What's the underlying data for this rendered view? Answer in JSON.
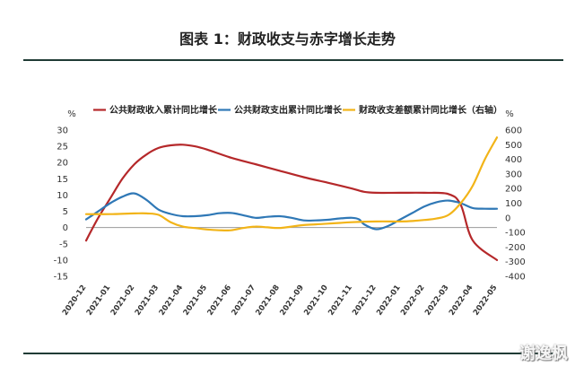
{
  "title": "图表 1：财政收支与赤字增长走势",
  "watermark": "谢逸枫",
  "chart_data": {
    "type": "line",
    "categories": [
      "2020-12",
      "2021-01",
      "2021-02",
      "2021-03",
      "2021-04",
      "2021-05",
      "2021-06",
      "2021-07",
      "2021-08",
      "2021-09",
      "2021-10",
      "2021-11",
      "2021-12",
      "2022-01",
      "2022-02",
      "2022-03",
      "2022-04",
      "2022-05"
    ],
    "left_unit": "%",
    "right_unit": "%",
    "ylim_left": [
      -15,
      30
    ],
    "yticks_left": [
      "30",
      "25",
      "20",
      "15",
      "10",
      "5",
      "0",
      "-5",
      "-10",
      "-15"
    ],
    "ylim_right": [
      -400,
      600
    ],
    "yticks_right": [
      "600",
      "500",
      "400",
      "300",
      "200",
      "100",
      "0",
      "-100",
      "-200",
      "-300",
      "-400"
    ],
    "legend_position": "top",
    "grid": false,
    "series": [
      {
        "name": "公共财政收入累计同比增长",
        "color": "#b5282a",
        "axis": "left",
        "x": [
          0,
          0.5,
          1,
          1.5,
          2,
          2.5,
          3,
          3.5,
          4,
          4.5,
          5,
          6,
          7,
          8,
          9,
          10,
          11,
          11.5,
          12,
          13,
          14,
          15,
          15.5,
          16,
          17
        ],
        "values": [
          -4,
          3,
          9,
          15,
          19.5,
          22.5,
          24.5,
          25.3,
          25.5,
          25,
          24,
          21.5,
          19.5,
          17.5,
          15.5,
          13.8,
          12,
          11,
          10.7,
          10.7,
          10.7,
          10.3,
          7,
          -4,
          -10
        ]
      },
      {
        "name": "公共财政支出累计同比增长",
        "color": "#2f78b6",
        "axis": "left",
        "x": [
          0,
          0.5,
          1,
          1.5,
          2,
          2.5,
          3,
          3.5,
          4,
          4.5,
          5,
          5.5,
          6,
          6.5,
          7,
          7.5,
          8,
          8.5,
          9,
          9.5,
          10,
          10.5,
          11,
          11.3,
          11.5,
          12,
          12.5,
          13,
          13.5,
          14,
          14.5,
          15,
          15.5,
          16,
          16.5,
          17
        ],
        "values": [
          2.5,
          5,
          7.5,
          9.5,
          10.5,
          8.5,
          5.5,
          4.2,
          3.5,
          3.5,
          3.8,
          4.4,
          4.5,
          3.8,
          3,
          3.3,
          3.5,
          3,
          2.2,
          2.2,
          2.4,
          2.8,
          3,
          2.5,
          1,
          -0.5,
          0.5,
          2.5,
          4.5,
          6.5,
          7.8,
          8.3,
          7.5,
          6,
          5.8,
          5.8
        ]
      },
      {
        "name": "财政收支差额累计同比增长（右轴）",
        "color": "#f2b418",
        "axis": "right",
        "x": [
          0,
          1,
          2,
          2.5,
          3,
          3.5,
          4,
          4.5,
          5,
          5.5,
          6,
          6.5,
          7,
          7.5,
          8,
          8.5,
          9,
          9.5,
          10,
          10.5,
          11,
          12,
          13,
          13.5,
          14,
          14.5,
          15,
          15.5,
          16,
          16.5,
          17
        ],
        "values": [
          25,
          25,
          30,
          30,
          20,
          -30,
          -60,
          -70,
          -80,
          -85,
          -85,
          -70,
          -60,
          -65,
          -70,
          -60,
          -50,
          -45,
          -40,
          -35,
          -30,
          -25,
          -25,
          -22,
          -15,
          -5,
          20,
          100,
          220,
          400,
          550
        ]
      }
    ]
  }
}
